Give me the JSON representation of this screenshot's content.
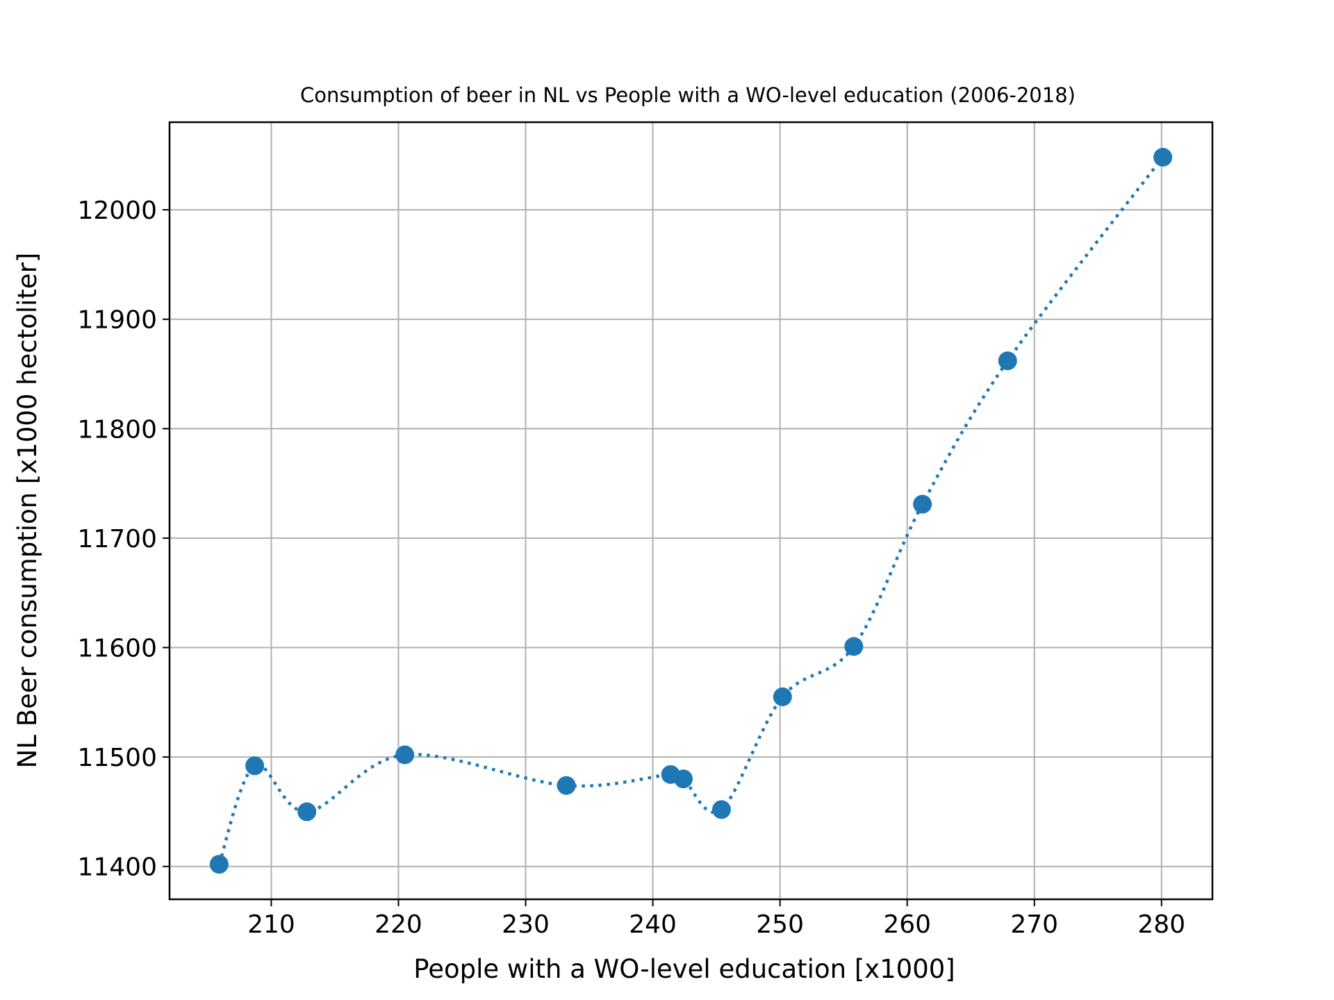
{
  "chart_data": {
    "type": "scatter",
    "title": "Consumption of beer in NL vs People with a WO-level education (2006-2018)",
    "xlabel": "People with a WO-level education [x1000]",
    "ylabel": "NL Beer consumption [x1000 hectoliter]",
    "xlim": [
      202,
      284
    ],
    "ylim": [
      11370,
      12080
    ],
    "xticks": [
      210,
      220,
      230,
      240,
      250,
      260,
      270,
      280
    ],
    "yticks": [
      11400,
      11500,
      11600,
      11700,
      11800,
      11900,
      12000
    ],
    "grid": true,
    "color": "#1f77b4",
    "line_style": "dotted-smooth",
    "series": [
      {
        "x": [
          205.9,
          208.7,
          212.8,
          220.5,
          233.2,
          241.4,
          242.4,
          245.4,
          250.2,
          255.8,
          261.2,
          267.9,
          280.1
        ],
        "y": [
          11402,
          11492,
          11450,
          11502,
          11474,
          11484,
          11480,
          11452,
          11555,
          11601,
          11731,
          11862,
          12048
        ]
      }
    ]
  }
}
